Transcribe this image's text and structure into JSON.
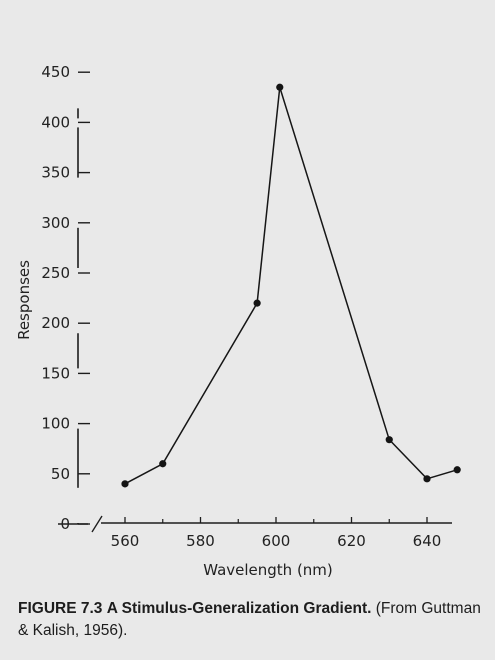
{
  "chart_data": {
    "type": "line",
    "title": "",
    "xlabel": "Wavelength (nm)",
    "ylabel": "Responses",
    "xlim": [
      555,
      650
    ],
    "ylim": [
      0,
      450
    ],
    "x_ticks": [
      560,
      580,
      600,
      620,
      640
    ],
    "y_ticks": [
      0,
      50,
      100,
      150,
      200,
      250,
      300,
      350,
      400,
      450
    ],
    "grid": false,
    "series": [
      {
        "x": [
          560,
          570,
          595,
          601,
          630,
          640,
          648
        ],
        "y": [
          40,
          60,
          220,
          435,
          84,
          45,
          54
        ]
      }
    ]
  },
  "caption": {
    "label": "FIGURE 7.3",
    "title": "A Stimulus-Generalization Gradient.",
    "source": "(From Guttman & Kalish, 1956)."
  }
}
